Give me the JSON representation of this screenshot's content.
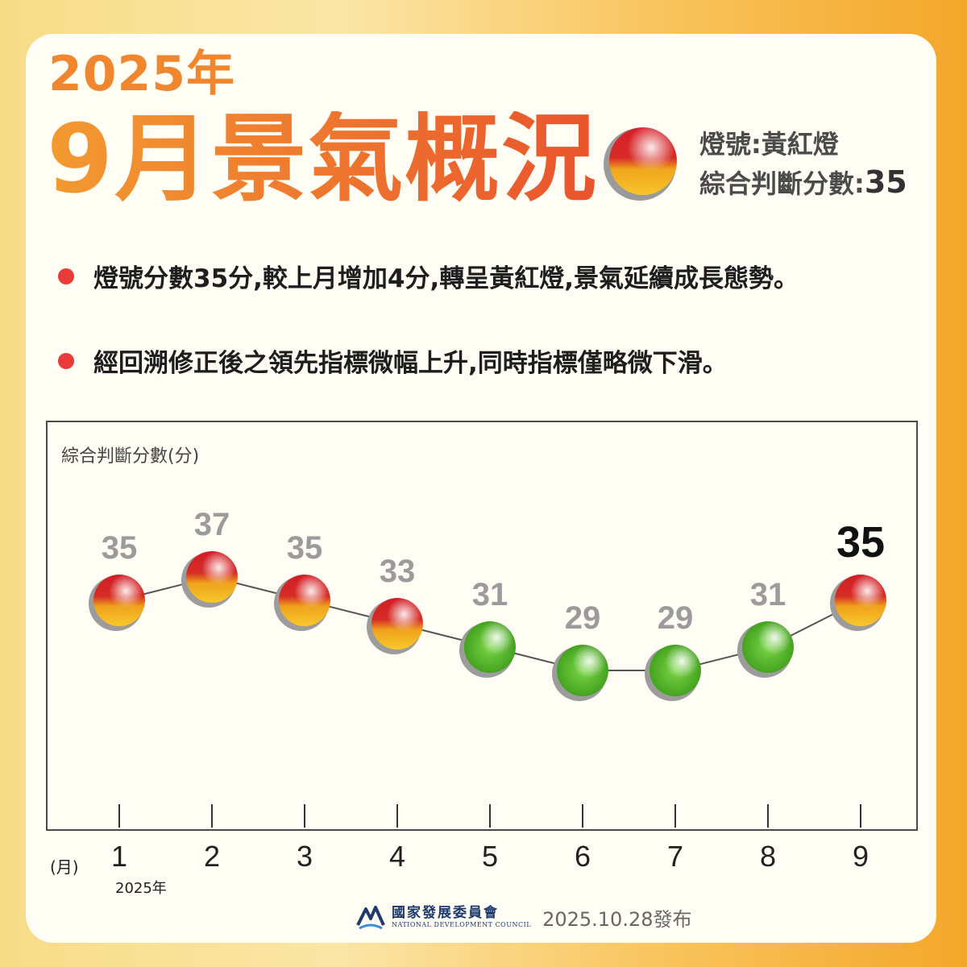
{
  "header": {
    "year": "2025年",
    "title": "9月景氣概況",
    "signal_line": "燈號:黃紅燈",
    "score_label": "綜合判斷分數:",
    "score_value": "35"
  },
  "bullets": [
    "燈號分數35分,較上月增加4分,轉呈黃紅燈,景氣延續成長態勢。",
    "經回溯修正後之領先指標微幅上升,同時指標僅略微下滑。"
  ],
  "colors": {
    "title_orange": "#ec7a2c",
    "bullet_red": "#ea3b3b",
    "light_green": "#5bbf2e",
    "light_yellow_red": "#e8a31f"
  },
  "chart_data": {
    "type": "line",
    "ylabel": "綜合判斷分數(分)",
    "xunit": "(月)",
    "x_note": "2025年",
    "categories": [
      "1",
      "2",
      "3",
      "4",
      "5",
      "6",
      "7",
      "8",
      "9"
    ],
    "values": [
      35,
      37,
      35,
      33,
      31,
      29,
      29,
      31,
      35
    ],
    "signals": [
      "yellow-red",
      "yellow-red",
      "yellow-red",
      "yellow-red",
      "green",
      "green",
      "green",
      "green",
      "yellow-red"
    ],
    "highlight_index": 8,
    "ylim": [
      20,
      40
    ],
    "grid": false
  },
  "footer": {
    "org_zh": "國家發展委員會",
    "org_en": "NATIONAL DEVELOPMENT COUNCIL",
    "release": "2025.10.28發布"
  }
}
